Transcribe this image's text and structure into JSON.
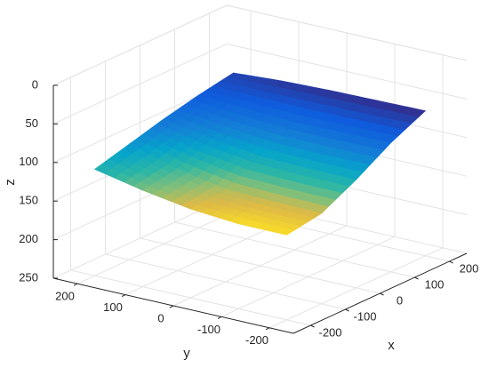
{
  "chart_data": {
    "type": "surface",
    "xlabel": "x",
    "ylabel": "y",
    "zlabel": "z",
    "xlim": [
      -250,
      250
    ],
    "ylim": [
      -250,
      250
    ],
    "zlim": [
      0,
      250
    ],
    "zdir": "reverse",
    "xticks": [
      -200,
      -100,
      0,
      100,
      200
    ],
    "yticks": [
      -200,
      -100,
      0,
      100,
      200
    ],
    "zticks": [
      0,
      50,
      100,
      150,
      200,
      250
    ],
    "grid": true,
    "colormap": "parula",
    "x": [
      -200,
      -100,
      0,
      100,
      200
    ],
    "y": [
      200,
      100,
      0,
      -100,
      -200
    ],
    "z": [
      [
        112,
        100,
        88,
        78,
        70
      ],
      [
        125,
        118,
        100,
        82,
        66
      ],
      [
        135,
        130,
        108,
        85,
        64
      ],
      [
        140,
        132,
        110,
        84,
        63
      ],
      [
        140,
        133,
        110,
        83,
        62
      ]
    ]
  }
}
